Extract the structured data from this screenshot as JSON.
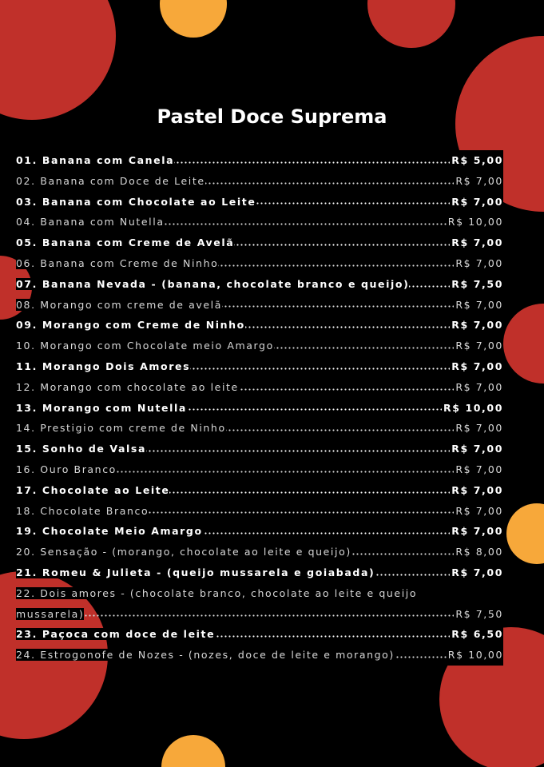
{
  "menu": {
    "title": "Pastel Doce Suprema",
    "items": [
      {
        "number": "01.",
        "name": "Banana com Canela",
        "price": "R$ 5,00",
        "bold": true
      },
      {
        "number": "02.",
        "name": "Banana com Doce de Leite",
        "price": "R$ 7,00",
        "bold": false
      },
      {
        "number": "03.",
        "name": "Banana com Chocolate ao Leite",
        "price": "R$ 7,00",
        "bold": true
      },
      {
        "number": "04.",
        "name": "Banana com Nutella",
        "price": "R$ 10,00",
        "bold": false
      },
      {
        "number": "05.",
        "name": "Banana com Creme de Avelã",
        "price": "R$ 7,00",
        "bold": true
      },
      {
        "number": "06.",
        "name": "Banana com Creme de Ninho",
        "price": "R$ 7,00",
        "bold": false
      },
      {
        "number": "07.",
        "name": "Banana Nevada - (banana, chocolate branco e queijo)",
        "price": "R$ 7,50",
        "bold": true
      },
      {
        "number": "08.",
        "name": "Morango com creme de avelã",
        "price": "R$ 7,00",
        "bold": false
      },
      {
        "number": "09.",
        "name": "Morango com Creme de Ninho",
        "price": "R$ 7,00",
        "bold": true
      },
      {
        "number": "10.",
        "name": "Morango com Chocolate meio Amargo",
        "price": "R$ 7,00",
        "bold": false
      },
      {
        "number": "11.",
        "name": "Morango Dois Amores",
        "price": "R$ 7,00",
        "bold": true
      },
      {
        "number": "12.",
        "name": "Morango com chocolate ao leite",
        "price": "R$ 7,00",
        "bold": false
      },
      {
        "number": "13.",
        "name": "Morango com Nutella",
        "price": "R$ 10,00",
        "bold": true
      },
      {
        "number": "14.",
        "name": "Prestigio com creme de Ninho",
        "price": "R$ 7,00",
        "bold": false
      },
      {
        "number": "15.",
        "name": "Sonho de Valsa",
        "price": "R$ 7,00",
        "bold": true
      },
      {
        "number": "16.",
        "name": "Ouro Branco",
        "price": "R$ 7,00",
        "bold": false
      },
      {
        "number": "17.",
        "name": "Chocolate ao Leite",
        "price": "R$ 7,00",
        "bold": true
      },
      {
        "number": "18.",
        "name": "Chocolate Branco",
        "price": "R$ 7,00",
        "bold": false
      },
      {
        "number": "19.",
        "name": "Chocolate Meio Amargo",
        "price": "R$ 7,00",
        "bold": true
      },
      {
        "number": "20.",
        "name": "Sensação - (morango, chocolate ao leite e queijo)",
        "price": "R$ 8,00",
        "bold": false
      },
      {
        "number": "21.",
        "name": "Romeu & Julieta - (queijo mussarela e goiabada)",
        "price": "R$ 7,00",
        "bold": true
      },
      {
        "number": "22.",
        "name": "Dois amores - (chocolate branco, chocolate ao leite e queijo mussarela)",
        "price": "R$ 7,50",
        "bold": false
      },
      {
        "number": "23.",
        "name": "Paçoca com doce de leite",
        "price": "R$ 6,50",
        "bold": true
      },
      {
        "number": "24.",
        "name": "Estrogonofe de Nozes - (nozes, doce de leite e morango)",
        "price": "R$ 10,00",
        "bold": false
      }
    ]
  }
}
